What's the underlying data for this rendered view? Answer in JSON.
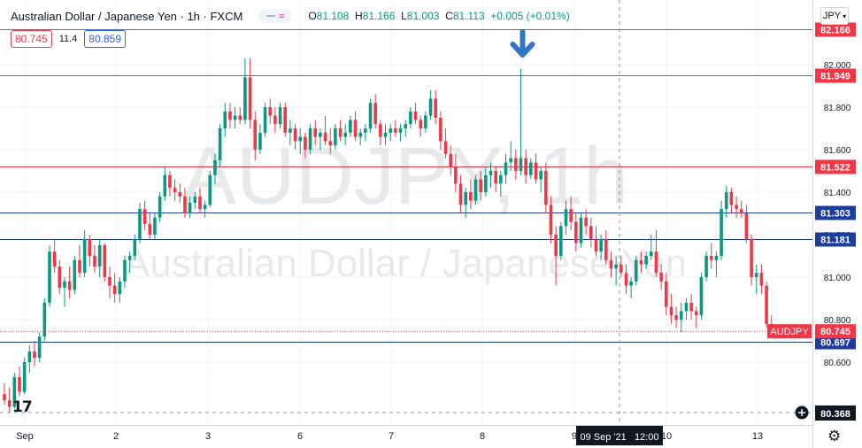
{
  "header": {
    "title": "Australian Dollar / Japanese Yen · 1h · FXCM",
    "ohlc": {
      "o_label": "O",
      "o": "81.108",
      "h_label": "H",
      "h": "81.166",
      "l_label": "L",
      "l": "81.003",
      "c_label": "C",
      "c": "81.113",
      "change": "+0.005 (+0.01%)"
    },
    "sell_price": "80.745",
    "spread": "11.4",
    "buy_price": "80.859",
    "currency": "JPY"
  },
  "colors": {
    "up": "#089981",
    "down": "#f23645",
    "resistance": "#f23645",
    "support": "#1c3d9f",
    "arrow": "#2f76c4",
    "grid": "#f0f3fa",
    "axis_text": "#131722",
    "watermark": "#c8c9cd"
  },
  "watermark": {
    "symbol": "AUDJPY, 1h",
    "name": "Australian Dollar / Japanese Yen"
  },
  "icons": {
    "signal_arrow": "arrow-down-icon",
    "logo": "tradingview-logo-icon",
    "settings": "gear-icon",
    "crosshair": "plus-circle-icon"
  },
  "logo_text": "17",
  "chart_data": {
    "type": "candlestick",
    "symbol": "AUDJPY",
    "timeframe": "1h",
    "ylim": [
      80.37,
      82.2
    ],
    "y_ticks": [
      "82.000",
      "81.800",
      "81.600",
      "81.400",
      "81.200",
      "81.000",
      "80.800",
      "80.600"
    ],
    "x_ticks": [
      "Sep",
      "2",
      "3",
      "6",
      "7",
      "8",
      "9",
      "10",
      "13"
    ],
    "crosshair_label": "09 Sep '21   12:00",
    "crosshair_price": "80.368",
    "last_price_tag": {
      "label": "AUDJPY",
      "value": "80.745"
    },
    "horizontal_levels": [
      {
        "value": 82.166,
        "label": "82.166",
        "kind": "resistance"
      },
      {
        "value": 81.949,
        "label": "81.949",
        "kind": "resistance"
      },
      {
        "value": 81.522,
        "label": "81.522",
        "kind": "resistance"
      },
      {
        "value": 81.303,
        "label": "81.303",
        "kind": "support"
      },
      {
        "value": 81.181,
        "label": "81.181",
        "kind": "support"
      },
      {
        "value": 80.697,
        "label": "80.697",
        "kind": "support"
      }
    ],
    "arrow_marker": {
      "candle_index": 103,
      "direction": "down"
    },
    "candles": [
      [
        80.45,
        80.5,
        80.4,
        80.42
      ],
      [
        80.42,
        80.48,
        80.36,
        80.39
      ],
      [
        80.39,
        80.55,
        80.38,
        80.53
      ],
      [
        80.53,
        80.58,
        80.44,
        80.46
      ],
      [
        80.46,
        80.62,
        80.45,
        80.6
      ],
      [
        80.6,
        80.68,
        80.55,
        80.65
      ],
      [
        80.65,
        80.7,
        80.58,
        80.62
      ],
      [
        80.62,
        80.74,
        80.6,
        80.72
      ],
      [
        80.72,
        80.9,
        80.7,
        80.88
      ],
      [
        80.88,
        81.15,
        80.86,
        81.12
      ],
      [
        81.12,
        81.18,
        81.02,
        81.05
      ],
      [
        81.05,
        81.08,
        80.92,
        80.95
      ],
      [
        80.95,
        81.0,
        80.86,
        80.98
      ],
      [
        80.98,
        81.05,
        80.9,
        80.94
      ],
      [
        80.94,
        81.1,
        80.92,
        81.08
      ],
      [
        81.08,
        81.15,
        81.0,
        81.02
      ],
      [
        81.02,
        81.22,
        81.0,
        81.18
      ],
      [
        81.18,
        81.2,
        81.05,
        81.1
      ],
      [
        81.1,
        81.15,
        81.02,
        81.05
      ],
      [
        81.05,
        81.18,
        81.0,
        81.15
      ],
      [
        81.15,
        81.16,
        80.98,
        81.0
      ],
      [
        81.0,
        81.05,
        80.9,
        80.96
      ],
      [
        80.96,
        81.02,
        80.88,
        80.92
      ],
      [
        80.92,
        81.0,
        80.88,
        80.98
      ],
      [
        80.98,
        81.1,
        80.95,
        81.08
      ],
      [
        81.08,
        81.12,
        81.02,
        81.1
      ],
      [
        81.1,
        81.2,
        81.08,
        81.18
      ],
      [
        81.18,
        81.35,
        81.16,
        81.32
      ],
      [
        81.32,
        81.36,
        81.22,
        81.25
      ],
      [
        81.25,
        81.3,
        81.18,
        81.2
      ],
      [
        81.2,
        81.3,
        81.18,
        81.28
      ],
      [
        81.28,
        81.4,
        81.26,
        81.38
      ],
      [
        81.38,
        81.52,
        81.36,
        81.48
      ],
      [
        81.48,
        81.5,
        81.38,
        81.42
      ],
      [
        81.42,
        81.46,
        81.36,
        81.4
      ],
      [
        81.4,
        81.44,
        81.35,
        81.38
      ],
      [
        81.38,
        81.42,
        81.28,
        81.3
      ],
      [
        81.3,
        81.38,
        81.28,
        81.35
      ],
      [
        81.35,
        81.4,
        81.32,
        81.38
      ],
      [
        81.38,
        81.42,
        81.3,
        81.32
      ],
      [
        81.32,
        81.36,
        81.28,
        81.34
      ],
      [
        81.34,
        81.5,
        81.33,
        81.48
      ],
      [
        81.48,
        81.58,
        81.44,
        81.55
      ],
      [
        81.55,
        81.72,
        81.52,
        81.7
      ],
      [
        81.7,
        81.82,
        81.66,
        81.78
      ],
      [
        81.78,
        81.82,
        81.7,
        81.74
      ],
      [
        81.74,
        81.8,
        81.7,
        81.76
      ],
      [
        81.76,
        81.8,
        81.72,
        81.74
      ],
      [
        81.74,
        82.03,
        81.72,
        81.94
      ],
      [
        81.94,
        82.03,
        81.7,
        81.74
      ],
      [
        81.74,
        81.78,
        81.55,
        81.6
      ],
      [
        81.6,
        81.72,
        81.58,
        81.68
      ],
      [
        81.68,
        81.82,
        81.66,
        81.8
      ],
      [
        81.8,
        81.84,
        81.72,
        81.76
      ],
      [
        81.76,
        81.8,
        81.68,
        81.72
      ],
      [
        81.72,
        81.82,
        81.7,
        81.8
      ],
      [
        81.8,
        81.82,
        81.66,
        81.68
      ],
      [
        81.68,
        81.74,
        81.62,
        81.7
      ],
      [
        81.7,
        81.72,
        81.6,
        81.64
      ],
      [
        81.64,
        81.7,
        81.58,
        81.66
      ],
      [
        81.66,
        81.68,
        81.56,
        81.6
      ],
      [
        81.6,
        81.72,
        81.58,
        81.7
      ],
      [
        81.7,
        81.74,
        81.62,
        81.66
      ],
      [
        81.66,
        81.7,
        81.6,
        81.68
      ],
      [
        81.68,
        81.76,
        81.62,
        81.64
      ],
      [
        81.64,
        81.7,
        81.58,
        81.62
      ],
      [
        81.62,
        81.72,
        81.6,
        81.7
      ],
      [
        81.7,
        81.74,
        81.64,
        81.66
      ],
      [
        81.66,
        81.72,
        81.62,
        81.68
      ],
      [
        81.68,
        81.76,
        81.66,
        81.74
      ],
      [
        81.74,
        81.78,
        81.64,
        81.66
      ],
      [
        81.66,
        81.7,
        81.62,
        81.68
      ],
      [
        81.68,
        81.72,
        81.64,
        81.7
      ],
      [
        81.7,
        81.84,
        81.68,
        81.82
      ],
      [
        81.82,
        81.86,
        81.7,
        81.72
      ],
      [
        81.72,
        81.74,
        81.62,
        81.66
      ],
      [
        81.66,
        81.72,
        81.62,
        81.68
      ],
      [
        81.68,
        81.72,
        81.64,
        81.7
      ],
      [
        81.7,
        81.74,
        81.66,
        81.68
      ],
      [
        81.68,
        81.72,
        81.64,
        81.7
      ],
      [
        81.7,
        81.74,
        81.66,
        81.72
      ],
      [
        81.72,
        81.8,
        81.7,
        81.78
      ],
      [
        81.78,
        81.82,
        81.72,
        81.74
      ],
      [
        81.74,
        81.76,
        81.66,
        81.7
      ],
      [
        81.7,
        81.78,
        81.68,
        81.76
      ],
      [
        81.76,
        81.88,
        81.74,
        81.84
      ],
      [
        81.84,
        81.88,
        81.72,
        81.75
      ],
      [
        81.75,
        81.78,
        81.6,
        81.64
      ],
      [
        81.64,
        81.7,
        81.56,
        81.58
      ],
      [
        81.58,
        81.62,
        81.48,
        81.52
      ],
      [
        81.52,
        81.58,
        81.4,
        81.44
      ],
      [
        81.44,
        81.48,
        81.3,
        81.34
      ],
      [
        81.34,
        81.42,
        81.28,
        81.4
      ],
      [
        81.4,
        81.46,
        81.32,
        81.36
      ],
      [
        81.36,
        81.48,
        81.34,
        81.46
      ],
      [
        81.46,
        81.5,
        81.36,
        81.4
      ],
      [
        81.4,
        81.52,
        81.38,
        81.48
      ],
      [
        81.48,
        81.54,
        81.42,
        81.5
      ],
      [
        81.5,
        81.52,
        81.4,
        81.44
      ],
      [
        81.44,
        81.5,
        81.38,
        81.48
      ],
      [
        81.48,
        81.58,
        81.44,
        81.54
      ],
      [
        81.54,
        81.64,
        81.5,
        81.56
      ],
      [
        81.56,
        81.6,
        81.46,
        81.5
      ],
      [
        81.5,
        81.98,
        81.48,
        81.56
      ],
      [
        81.56,
        81.6,
        81.44,
        81.48
      ],
      [
        81.48,
        81.56,
        81.46,
        81.54
      ],
      [
        81.54,
        81.58,
        81.44,
        81.46
      ],
      [
        81.46,
        81.52,
        81.4,
        81.5
      ],
      [
        81.5,
        81.54,
        81.3,
        81.34
      ],
      [
        81.34,
        81.38,
        81.16,
        81.2
      ],
      [
        81.2,
        81.24,
        80.96,
        81.1
      ],
      [
        81.1,
        81.26,
        81.08,
        81.24
      ],
      [
        81.24,
        81.36,
        81.2,
        81.32
      ],
      [
        81.32,
        81.38,
        81.22,
        81.26
      ],
      [
        81.26,
        81.3,
        81.12,
        81.16
      ],
      [
        81.16,
        81.3,
        81.14,
        81.28
      ],
      [
        81.28,
        81.32,
        81.2,
        81.24
      ],
      [
        81.24,
        81.28,
        81.14,
        81.18
      ],
      [
        81.18,
        81.24,
        81.1,
        81.12
      ],
      [
        81.12,
        81.2,
        81.08,
        81.18
      ],
      [
        81.18,
        81.22,
        81.06,
        81.08
      ],
      [
        81.08,
        81.12,
        81.0,
        81.04
      ],
      [
        81.04,
        81.1,
        80.96,
        81.06
      ],
      [
        81.06,
        81.1,
        81.0,
        81.02
      ],
      [
        81.02,
        81.06,
        80.92,
        80.96
      ],
      [
        80.96,
        81.0,
        80.9,
        80.98
      ],
      [
        80.98,
        81.1,
        80.96,
        81.08
      ],
      [
        81.08,
        81.12,
        81.02,
        81.06
      ],
      [
        81.06,
        81.12,
        81.04,
        81.1
      ],
      [
        81.1,
        81.2,
        81.08,
        81.12
      ],
      [
        81.12,
        81.22,
        81.0,
        81.02
      ],
      [
        81.02,
        81.06,
        80.94,
        80.98
      ],
      [
        80.98,
        81.02,
        80.82,
        80.86
      ],
      [
        80.86,
        80.92,
        80.78,
        80.82
      ],
      [
        80.82,
        80.86,
        80.76,
        80.8
      ],
      [
        80.8,
        80.88,
        80.74,
        80.84
      ],
      [
        80.84,
        80.9,
        80.8,
        80.88
      ],
      [
        80.88,
        80.92,
        80.8,
        80.84
      ],
      [
        80.84,
        80.86,
        80.76,
        80.82
      ],
      [
        80.82,
        81.02,
        80.8,
        81.0
      ],
      [
        81.0,
        81.12,
        80.98,
        81.1
      ],
      [
        81.1,
        81.16,
        81.04,
        81.08
      ],
      [
        81.08,
        81.12,
        81.0,
        81.1
      ],
      [
        81.1,
        81.36,
        81.08,
        81.32
      ],
      [
        81.32,
        81.43,
        81.28,
        81.4
      ],
      [
        81.4,
        81.42,
        81.3,
        81.34
      ],
      [
        81.34,
        81.38,
        81.28,
        81.32
      ],
      [
        81.32,
        81.36,
        81.28,
        81.3
      ],
      [
        81.3,
        81.34,
        81.16,
        81.18
      ],
      [
        81.18,
        81.2,
        80.96,
        81.0
      ],
      [
        81.0,
        81.06,
        80.92,
        81.02
      ],
      [
        81.02,
        81.06,
        80.92,
        80.96
      ],
      [
        80.96,
        80.98,
        80.76,
        80.78
      ],
      [
        80.78,
        80.82,
        80.72,
        80.745
      ]
    ]
  }
}
